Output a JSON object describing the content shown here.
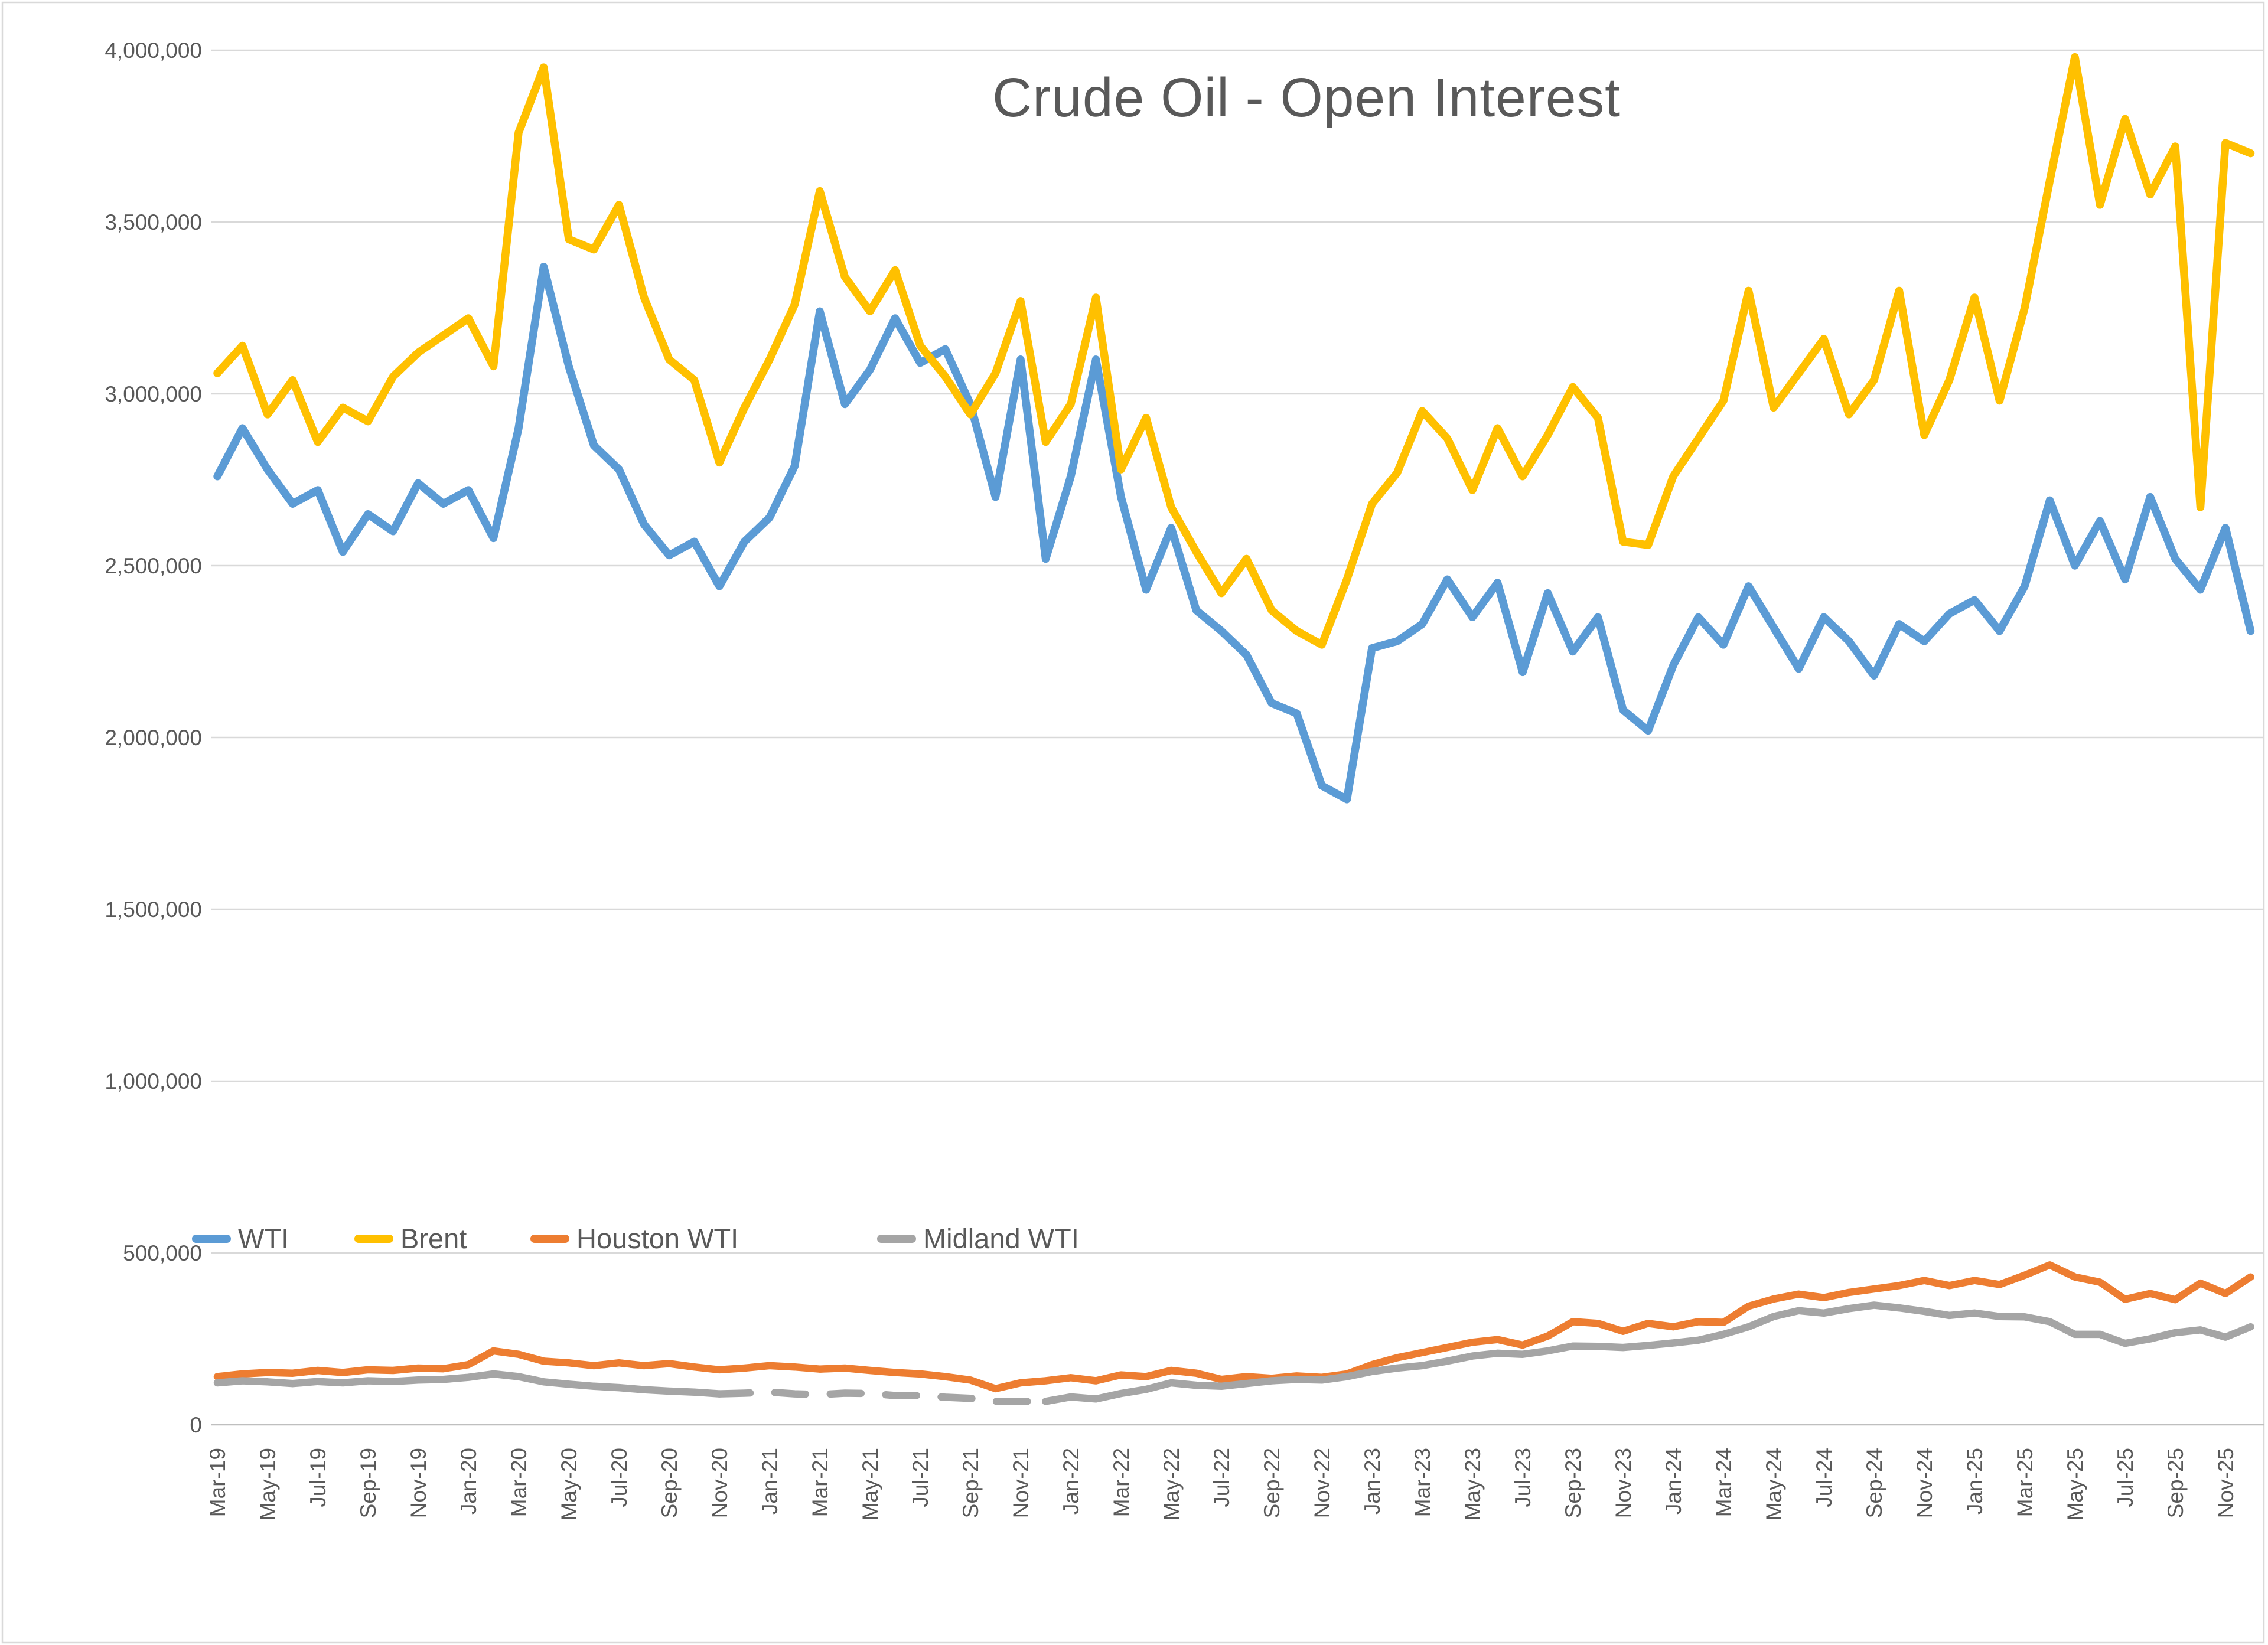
{
  "title": "Crude Oil - Open Interest",
  "colors": {
    "wti_blue": "#5B9BD5",
    "brent_yellow": "#FFC000",
    "houston_orange": "#ED7D31",
    "midland_gray": "#A5A5A5",
    "text_gray": "#595959",
    "gridline": "#D9D9D9",
    "zero_axis": "#BFBFBF",
    "background": "#FFFFFF"
  },
  "chart_data": {
    "type": "line",
    "title": "Crude Oil - Open Interest",
    "xlabel": "",
    "ylabel": "",
    "ylim": [
      0,
      4000000
    ],
    "y_tick_step": 500000,
    "grid": "horizontal",
    "legend_position": "overlay-left-lower",
    "y_tick_labels": [
      "4,000,000",
      "3,500,000",
      "3,000,000",
      "2,500,000",
      "2,000,000",
      "1,500,000",
      "1,000,000",
      "500,000",
      "0"
    ],
    "x_tick_labels": [
      "Mar-19",
      "May-19",
      "Jul-19",
      "Sep-19",
      "Nov-19",
      "Jan-20",
      "Mar-20",
      "May-20",
      "Jul-20",
      "Sep-20",
      "Nov-20",
      "Jan-21",
      "Mar-21",
      "May-21",
      "Jul-21",
      "Sep-21",
      "Nov-21",
      "Jan-22",
      "Mar-22",
      "May-22",
      "Jul-22",
      "Sep-22",
      "Nov-22",
      "Jan-23",
      "Mar-23",
      "May-23",
      "Jul-23",
      "Sep-23",
      "Nov-23",
      "Jan-24",
      "Mar-24",
      "May-24",
      "Jul-24",
      "Sep-24",
      "Nov-24",
      "Jan-25",
      "Mar-25",
      "May-25",
      "Jul-25",
      "Sep-25",
      "Nov-25"
    ],
    "x_start_month": "Mar-19",
    "x_end_month": "Dec-25",
    "months_per_point": 1,
    "series": [
      {
        "name": "WTI",
        "color": "#5B9BD5",
        "values": [
          2760000,
          2900000,
          2780000,
          2680000,
          2720000,
          2540000,
          2650000,
          2600000,
          2740000,
          2680000,
          2720000,
          2580000,
          2900000,
          3370000,
          3080000,
          2850000,
          2780000,
          2620000,
          2530000,
          2570000,
          2440000,
          2570000,
          2640000,
          2790000,
          3240000,
          2970000,
          3070000,
          3220000,
          3090000,
          3130000,
          2970000,
          2700000,
          3100000,
          2520000,
          2760000,
          3100000,
          2700000,
          2430000,
          2610000,
          2370000,
          2310000,
          2240000,
          2100000,
          2070000,
          1860000,
          1820000,
          2260000,
          2280000,
          2330000,
          2460000,
          2350000,
          2450000,
          2190000,
          2420000,
          2250000,
          2350000,
          2080000,
          2020000,
          2210000,
          2350000,
          2270000,
          2440000,
          2320000,
          2200000,
          2350000,
          2280000,
          2180000,
          2330000,
          2280000,
          2360000,
          2400000,
          2310000,
          2440000,
          2690000,
          2500000,
          2630000,
          2460000,
          2700000,
          2520000,
          2430000,
          2610000,
          2310000
        ]
      },
      {
        "name": "Brent",
        "color": "#FFC000",
        "values": [
          3060000,
          3140000,
          2940000,
          3040000,
          2860000,
          2960000,
          2920000,
          3050000,
          3120000,
          3170000,
          3220000,
          3080000,
          3760000,
          3950000,
          3450000,
          3420000,
          3550000,
          3280000,
          3100000,
          3040000,
          2800000,
          2960000,
          3100000,
          3260000,
          3590000,
          3340000,
          3240000,
          3360000,
          3140000,
          3050000,
          2940000,
          3060000,
          3270000,
          2860000,
          2970000,
          3280000,
          2780000,
          2930000,
          2670000,
          2540000,
          2420000,
          2520000,
          2370000,
          2310000,
          2270000,
          2460000,
          2680000,
          2770000,
          2950000,
          2870000,
          2720000,
          2900000,
          2760000,
          2880000,
          3020000,
          2930000,
          2570000,
          2560000,
          2760000,
          2870000,
          2980000,
          3300000,
          2960000,
          3060000,
          3160000,
          2940000,
          3040000,
          3300000,
          2880000,
          3040000,
          3280000,
          2980000,
          3250000,
          3620000,
          3980000,
          3550000,
          3800000,
          3580000,
          3720000,
          2670000,
          3730000,
          3700000
        ]
      },
      {
        "name": "Houston WTI",
        "color": "#ED7D31",
        "values": [
          140000,
          148000,
          152000,
          150000,
          158000,
          152000,
          160000,
          158000,
          165000,
          163000,
          175000,
          215000,
          205000,
          185000,
          180000,
          172000,
          180000,
          172000,
          178000,
          168000,
          160000,
          165000,
          172000,
          168000,
          162000,
          165000,
          158000,
          152000,
          148000,
          140000,
          130000,
          105000,
          122000,
          128000,
          137000,
          128000,
          145000,
          140000,
          158000,
          150000,
          132000,
          140000,
          135000,
          142000,
          138000,
          148000,
          175000,
          195000,
          210000,
          225000,
          240000,
          248000,
          232000,
          258000,
          300000,
          295000,
          272000,
          295000,
          285000,
          300000,
          298000,
          345000,
          366000,
          380000,
          370000,
          385000,
          395000,
          405000,
          420000,
          405000,
          420000,
          408000,
          435000,
          465000,
          430000,
          415000,
          365000,
          382000,
          364000,
          412000,
          382000,
          430000
        ]
      },
      {
        "name": "Midland WTI",
        "color": "#A5A5A5",
        "dashed_range": [
          20,
          33
        ],
        "values": [
          122000,
          128000,
          125000,
          120000,
          126000,
          122000,
          128000,
          126000,
          130000,
          132000,
          138000,
          148000,
          140000,
          125000,
          118000,
          112000,
          108000,
          102000,
          98000,
          95000,
          90000,
          92000,
          95000,
          90000,
          88000,
          92000,
          91000,
          85000,
          85000,
          80000,
          77000,
          68000,
          68000,
          68000,
          81000,
          75000,
          91000,
          103000,
          122000,
          115000,
          112000,
          120000,
          128000,
          132000,
          130000,
          140000,
          155000,
          165000,
          172000,
          185000,
          200000,
          208000,
          205000,
          215000,
          229000,
          228000,
          225000,
          231000,
          238000,
          246000,
          263000,
          285000,
          315000,
          332000,
          325000,
          338000,
          348000,
          340000,
          330000,
          318000,
          325000,
          315000,
          314000,
          300000,
          263000,
          263000,
          237000,
          250000,
          268000,
          276000,
          255000,
          285000
        ]
      }
    ]
  }
}
